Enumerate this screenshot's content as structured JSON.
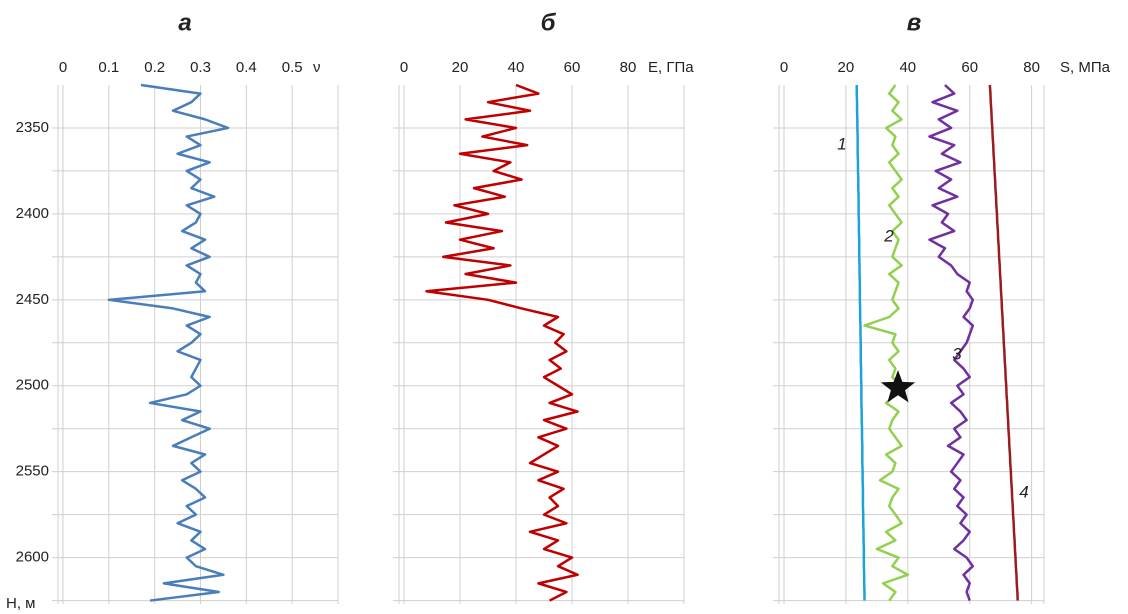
{
  "chart_data": [
    {
      "type": "line",
      "title": "а",
      "xlabel": "ν",
      "ylabel": "H, м",
      "xlim": [
        0,
        0.6
      ],
      "xticks": [
        0,
        0.1,
        0.2,
        0.3,
        0.4,
        0.5
      ],
      "ylim": [
        2325,
        2627
      ],
      "yticks": [
        2350,
        2400,
        2450,
        2500,
        2550,
        2600
      ],
      "yminor": [
        2375,
        2425,
        2475,
        2525,
        2575,
        2625
      ],
      "yreversed": true,
      "grid": true,
      "y": [
        2325,
        2330,
        2335,
        2340,
        2345,
        2350,
        2355,
        2360,
        2365,
        2370,
        2375,
        2380,
        2385,
        2390,
        2395,
        2400,
        2405,
        2410,
        2415,
        2420,
        2425,
        2430,
        2435,
        2440,
        2445,
        2450,
        2455,
        2460,
        2465,
        2470,
        2475,
        2480,
        2485,
        2490,
        2495,
        2500,
        2505,
        2510,
        2515,
        2520,
        2525,
        2530,
        2535,
        2540,
        2545,
        2550,
        2555,
        2560,
        2565,
        2570,
        2575,
        2580,
        2585,
        2590,
        2595,
        2600,
        2605,
        2610,
        2615,
        2620,
        2625
      ],
      "series": [
        {
          "color": "#4a7ebb",
          "values": [
            0.17,
            0.3,
            0.28,
            0.24,
            0.31,
            0.36,
            0.27,
            0.3,
            0.25,
            0.32,
            0.27,
            0.3,
            0.28,
            0.33,
            0.27,
            0.3,
            0.29,
            0.26,
            0.31,
            0.28,
            0.32,
            0.27,
            0.3,
            0.29,
            0.31,
            0.1,
            0.24,
            0.32,
            0.27,
            0.3,
            0.28,
            0.25,
            0.3,
            0.29,
            0.28,
            0.3,
            0.27,
            0.19,
            0.3,
            0.26,
            0.32,
            0.28,
            0.24,
            0.31,
            0.28,
            0.3,
            0.26,
            0.29,
            0.31,
            0.27,
            0.29,
            0.25,
            0.3,
            0.28,
            0.31,
            0.27,
            0.29,
            0.35,
            0.22,
            0.34,
            0.19
          ]
        }
      ]
    },
    {
      "type": "line",
      "title": "б",
      "xlabel": "E, ГПа",
      "xlim": [
        0,
        100
      ],
      "xticks": [
        0,
        20,
        40,
        60,
        80
      ],
      "sharey": true,
      "grid": true,
      "series": [
        {
          "color": "#c00000",
          "values": [
            40,
            48,
            30,
            45,
            22,
            40,
            28,
            44,
            20,
            38,
            32,
            42,
            25,
            36,
            18,
            30,
            15,
            35,
            20,
            32,
            14,
            38,
            22,
            40,
            8,
            30,
            42,
            55,
            50,
            57,
            54,
            58,
            52,
            56,
            50,
            55,
            60,
            52,
            62,
            50,
            58,
            48,
            55,
            50,
            45,
            55,
            48,
            57,
            52,
            55,
            50,
            58,
            45,
            55,
            50,
            60,
            55,
            62,
            48,
            58,
            52
          ]
        }
      ]
    },
    {
      "type": "line",
      "title": "в",
      "xlabel": "S, МПа",
      "xlim": [
        0,
        84
      ],
      "xticks": [
        0,
        20,
        40,
        60,
        80
      ],
      "sharey": true,
      "grid": true,
      "annotations": [
        "1",
        "2",
        "3",
        "4"
      ],
      "series": [
        {
          "color": "#1aa3d9",
          "values": [
            23.5,
            23.5,
            23.6,
            23.6,
            23.7,
            23.7,
            23.8,
            23.8,
            23.8,
            23.9,
            23.9,
            24.0,
            24.0,
            24.1,
            24.1,
            24.1,
            24.2,
            24.2,
            24.3,
            24.3,
            24.3,
            24.4,
            24.4,
            24.5,
            24.5,
            24.5,
            24.6,
            24.6,
            24.7,
            24.7,
            24.8,
            24.8,
            24.8,
            24.9,
            24.9,
            25.0,
            25.0,
            25.0,
            25.1,
            25.1,
            25.2,
            25.2,
            25.3,
            25.3,
            25.3,
            25.4,
            25.4,
            25.5,
            25.5,
            25.5,
            25.6,
            25.6,
            25.7,
            25.7,
            25.8,
            25.8,
            25.8,
            25.9,
            25.9,
            26.0,
            26.0
          ]
        },
        {
          "color": "#92d050",
          "values": [
            36,
            34,
            37,
            35,
            38,
            33,
            36,
            35,
            37,
            34,
            36,
            38,
            35,
            37,
            34,
            36,
            38,
            35,
            37,
            36,
            35,
            38,
            34,
            37,
            36,
            35,
            37,
            34,
            26,
            36,
            35,
            37,
            34,
            36,
            35,
            38,
            36,
            33,
            37,
            35,
            34,
            36,
            38,
            33,
            36,
            35,
            31,
            37,
            35,
            34,
            36,
            38,
            33,
            36,
            30,
            37,
            35,
            40,
            32,
            36,
            34
          ]
        },
        {
          "color": "#7030a0",
          "values": [
            52,
            55,
            48,
            56,
            50,
            54,
            47,
            55,
            51,
            57,
            49,
            54,
            50,
            56,
            48,
            53,
            51,
            55,
            47,
            52,
            50,
            54,
            56,
            60,
            59,
            61,
            60,
            58,
            61,
            60,
            59,
            57,
            55,
            58,
            60,
            56,
            58,
            54,
            57,
            59,
            55,
            57,
            53,
            58,
            56,
            54,
            57,
            55,
            58,
            56,
            59,
            57,
            60,
            58,
            55,
            59,
            61,
            58,
            60,
            59,
            60
          ]
        },
        {
          "color": "#9b1c1c",
          "values": [
            66.5,
            66.7,
            66.8,
            67.0,
            67.1,
            67.3,
            67.4,
            67.6,
            67.7,
            67.9,
            68.0,
            68.2,
            68.3,
            68.5,
            68.6,
            68.8,
            68.9,
            69.1,
            69.2,
            69.4,
            69.5,
            69.7,
            69.8,
            70.0,
            70.1,
            70.3,
            70.4,
            70.6,
            70.7,
            70.9,
            71.0,
            71.2,
            71.3,
            71.5,
            71.6,
            71.8,
            71.9,
            72.1,
            72.2,
            72.4,
            72.5,
            72.7,
            72.8,
            73.0,
            73.1,
            73.3,
            73.4,
            73.6,
            73.7,
            73.9,
            74.0,
            74.2,
            74.3,
            74.5,
            74.6,
            74.8,
            74.9,
            75.1,
            75.2,
            75.4,
            75.5
          ]
        }
      ]
    }
  ]
}
